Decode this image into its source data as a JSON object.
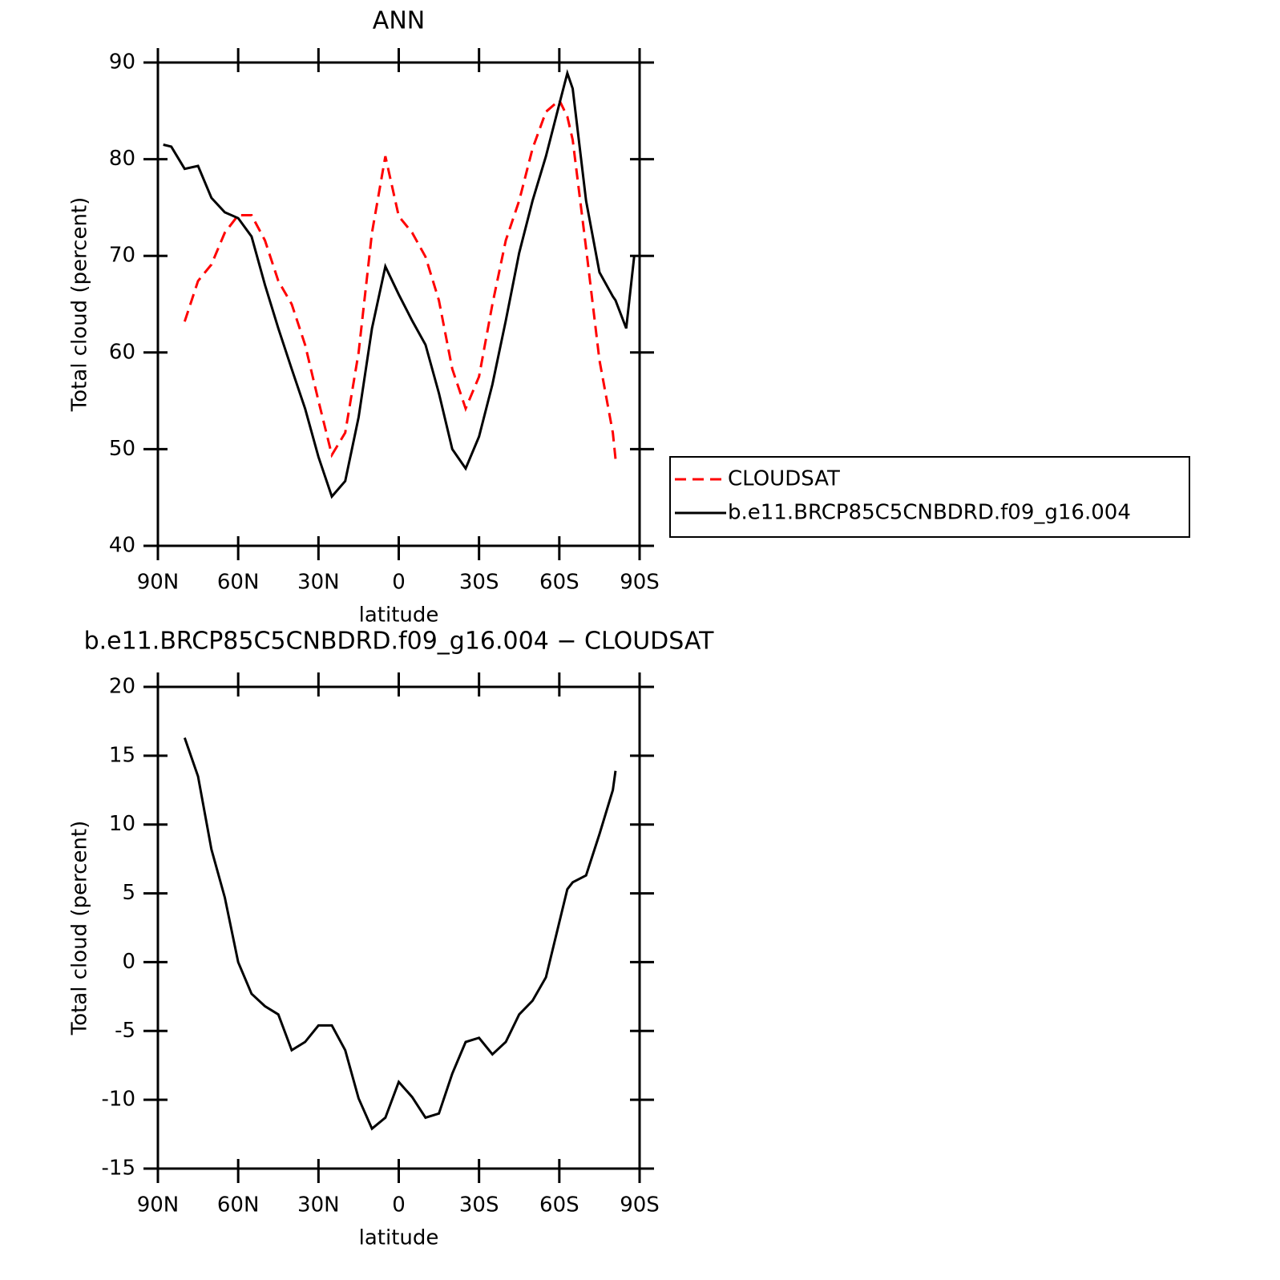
{
  "chart_data": [
    {
      "type": "line",
      "title": "ANN",
      "xlabel": "latitude",
      "ylabel": "Total cloud (percent)",
      "x": [
        88,
        85,
        80,
        75,
        70,
        65,
        60,
        55,
        50,
        45,
        40,
        35,
        30,
        25,
        20,
        15,
        10,
        5,
        0,
        -5,
        -10,
        -15,
        -20,
        -25,
        -30,
        -35,
        -40,
        -45,
        -50,
        -55,
        -60,
        -63,
        -65,
        -70,
        -75,
        -80,
        -81,
        -85,
        -88
      ],
      "series": [
        {
          "name": "CLOUDSAT",
          "color": "#ff0000",
          "line_style": "dashed",
          "values": [
            null,
            null,
            63.2,
            67.4,
            69.1,
            72.4,
            74.2,
            74.2,
            71.6,
            67.4,
            65.0,
            60.8,
            55.0,
            49.4,
            51.7,
            60.0,
            72.4,
            80.3,
            74.1,
            72.4,
            69.9,
            65.4,
            58.3,
            54.2,
            57.5,
            65.0,
            71.6,
            75.7,
            81.1,
            84.9,
            86.1,
            84.4,
            82.0,
            70.8,
            59.2,
            51.7,
            49.0,
            null,
            null
          ]
        },
        {
          "name": "b.e11.BRCP85C5CNBDRD.f09_g16.004",
          "color": "#000000",
          "line_style": "solid",
          "values": [
            81.5,
            81.3,
            79.0,
            79.3,
            76.0,
            74.5,
            73.9,
            72.0,
            67.0,
            62.5,
            58.3,
            54.2,
            49.2,
            45.1,
            46.7,
            53.3,
            62.5,
            68.9,
            66.0,
            63.3,
            60.8,
            55.8,
            50.0,
            48.0,
            51.3,
            56.7,
            63.3,
            70.3,
            75.7,
            80.3,
            85.7,
            88.9,
            87.3,
            75.7,
            68.3,
            65.8,
            65.4,
            62.5,
            70.0
          ]
        }
      ],
      "xlim": [
        90,
        -90
      ],
      "xticks": [
        {
          "value": 90,
          "label": "90N"
        },
        {
          "value": 60,
          "label": "60N"
        },
        {
          "value": 30,
          "label": "30N"
        },
        0,
        {
          "value": -30,
          "label": "30S"
        },
        {
          "value": -60,
          "label": "60S"
        },
        {
          "value": -90,
          "label": "90S"
        }
      ],
      "ylim": [
        40,
        90
      ],
      "yticks": [
        40,
        50,
        60,
        70,
        80,
        90
      ],
      "legend": "right"
    },
    {
      "type": "line",
      "title": "b.e11.BRCP85C5CNBDRD.f09_g16.004 − CLOUDSAT",
      "xlabel": "latitude",
      "ylabel": "Total cloud (percent)",
      "x": [
        80,
        75,
        70,
        65,
        60,
        55,
        50,
        45,
        40,
        35,
        30,
        25,
        20,
        15,
        10,
        5,
        0,
        -5,
        -10,
        -15,
        -20,
        -25,
        -30,
        -35,
        -40,
        -45,
        -50,
        -55,
        -60,
        -63,
        -65,
        -70,
        -75,
        -80,
        -81
      ],
      "values": [
        16.3,
        13.5,
        8.2,
        4.7,
        0.0,
        -2.3,
        -3.2,
        -3.8,
        -6.4,
        -5.8,
        -4.6,
        -4.6,
        -6.4,
        -9.9,
        -12.1,
        -11.3,
        -8.7,
        -9.8,
        -11.3,
        -11.0,
        -8.1,
        -5.8,
        -5.5,
        -6.7,
        -5.8,
        -3.8,
        -2.8,
        -1.1,
        2.9,
        5.3,
        5.8,
        6.3,
        9.3,
        12.5,
        13.9
      ],
      "color": "#000000",
      "xlim": [
        90,
        -90
      ],
      "xticks": [
        {
          "value": 90,
          "label": "90N"
        },
        {
          "value": 60,
          "label": "60N"
        },
        {
          "value": 30,
          "label": "30N"
        },
        0,
        {
          "value": -30,
          "label": "30S"
        },
        {
          "value": -60,
          "label": "60S"
        },
        {
          "value": -90,
          "label": "90S"
        }
      ],
      "ylim": [
        -15,
        20
      ],
      "yticks": [
        -15,
        -10,
        -5,
        0,
        5,
        10,
        15,
        20
      ]
    }
  ]
}
